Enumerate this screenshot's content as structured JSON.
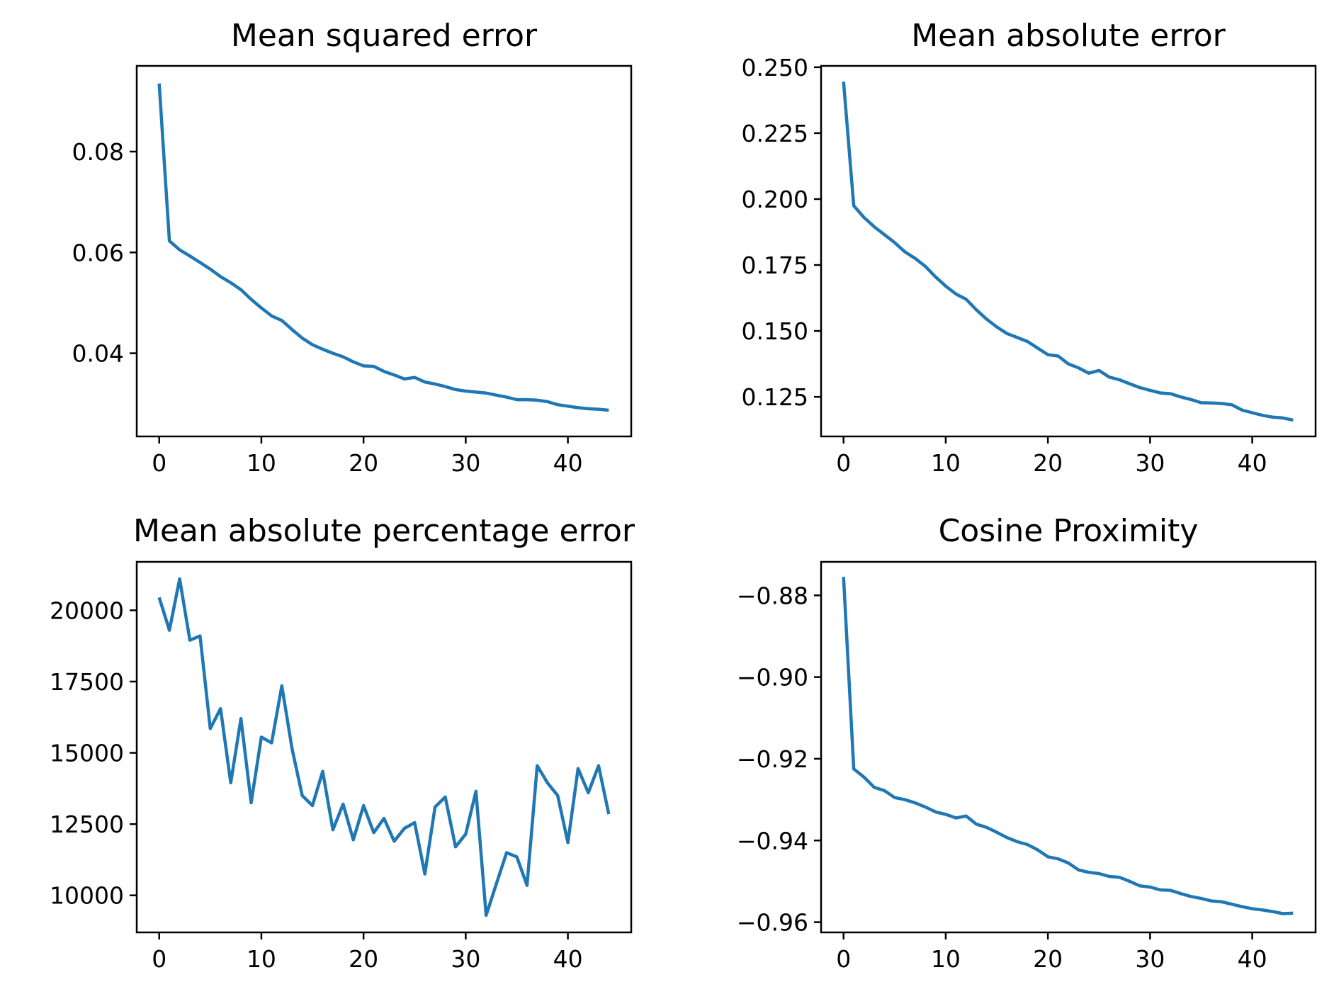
{
  "colors": {
    "series": "#1f77b4"
  },
  "chart_data": [
    {
      "type": "line",
      "title": "Mean squared error",
      "xlim": [
        -2.2,
        46.2
      ],
      "ylim": [
        0.0235,
        0.097
      ],
      "xticks": [
        0,
        10,
        20,
        30,
        40
      ],
      "xtick_labels": [
        "0",
        "10",
        "20",
        "30",
        "40"
      ],
      "yticks": [
        0.04,
        0.06,
        0.08
      ],
      "ytick_labels": [
        "0.04",
        "0.06",
        "0.08"
      ],
      "x": [
        0,
        1,
        2,
        3,
        4,
        5,
        6,
        7,
        8,
        9,
        10,
        11,
        12,
        13,
        14,
        15,
        16,
        17,
        18,
        19,
        20,
        21,
        22,
        23,
        24,
        25,
        26,
        27,
        28,
        29,
        30,
        31,
        32,
        33,
        34,
        35,
        36,
        37,
        38,
        39,
        40,
        41,
        42,
        43,
        44
      ],
      "series": [
        {
          "values": [
            0.0935,
            0.0623,
            0.0605,
            0.0593,
            0.058,
            0.0567,
            0.0552,
            0.054,
            0.0526,
            0.0507,
            0.049,
            0.0474,
            0.0465,
            0.0447,
            0.043,
            0.0417,
            0.0408,
            0.04,
            0.0393,
            0.0383,
            0.0375,
            0.0374,
            0.0364,
            0.0357,
            0.0349,
            0.0352,
            0.0343,
            0.0339,
            0.0334,
            0.0328,
            0.0325,
            0.0323,
            0.0321,
            0.0317,
            0.0313,
            0.0308,
            0.0308,
            0.0307,
            0.0304,
            0.0298,
            0.0295,
            0.0292,
            0.029,
            0.0289,
            0.0287
          ]
        }
      ]
    },
    {
      "type": "line",
      "title": "Mean absolute error",
      "xlim": [
        -2.2,
        46.2
      ],
      "ylim": [
        0.11,
        0.2505
      ],
      "xticks": [
        0,
        10,
        20,
        30,
        40
      ],
      "xtick_labels": [
        "0",
        "10",
        "20",
        "30",
        "40"
      ],
      "yticks": [
        0.125,
        0.15,
        0.175,
        0.2,
        0.225,
        0.25
      ],
      "ytick_labels": [
        "0.125",
        "0.150",
        "0.175",
        "0.200",
        "0.225",
        "0.250"
      ],
      "x": [
        0,
        1,
        2,
        3,
        4,
        5,
        6,
        7,
        8,
        9,
        10,
        11,
        12,
        13,
        14,
        15,
        16,
        17,
        18,
        19,
        20,
        21,
        22,
        23,
        24,
        25,
        26,
        27,
        28,
        29,
        30,
        31,
        32,
        33,
        34,
        35,
        36,
        37,
        38,
        39,
        40,
        41,
        42,
        43,
        44
      ],
      "series": [
        {
          "values": [
            0.2445,
            0.1975,
            0.193,
            0.1895,
            0.1865,
            0.1835,
            0.18,
            0.1775,
            0.1745,
            0.1705,
            0.167,
            0.164,
            0.162,
            0.158,
            0.1545,
            0.1515,
            0.149,
            0.1475,
            0.146,
            0.1435,
            0.141,
            0.1405,
            0.1375,
            0.136,
            0.134,
            0.135,
            0.1325,
            0.1315,
            0.13,
            0.1285,
            0.1275,
            0.1265,
            0.1262,
            0.125,
            0.124,
            0.1228,
            0.1227,
            0.1225,
            0.122,
            0.12,
            0.119,
            0.118,
            0.1173,
            0.117,
            0.1162
          ]
        }
      ]
    },
    {
      "type": "line",
      "title": "Mean absolute percentage error",
      "xlim": [
        -2.2,
        46.2
      ],
      "ylim": [
        8700,
        21700
      ],
      "xticks": [
        0,
        10,
        20,
        30,
        40
      ],
      "xtick_labels": [
        "0",
        "10",
        "20",
        "30",
        "40"
      ],
      "yticks": [
        10000,
        12500,
        15000,
        17500,
        20000
      ],
      "ytick_labels": [
        "10000",
        "12500",
        "15000",
        "17500",
        "20000"
      ],
      "x": [
        0,
        1,
        2,
        3,
        4,
        5,
        6,
        7,
        8,
        9,
        10,
        11,
        12,
        13,
        14,
        15,
        16,
        17,
        18,
        19,
        20,
        21,
        22,
        23,
        24,
        25,
        26,
        27,
        28,
        29,
        30,
        31,
        32,
        33,
        34,
        35,
        36,
        37,
        38,
        39,
        40,
        41,
        42,
        43,
        44
      ],
      "series": [
        {
          "values": [
            20450,
            19300,
            21100,
            18950,
            19100,
            15850,
            16550,
            13950,
            16200,
            13250,
            15550,
            15350,
            17350,
            15150,
            13500,
            13150,
            14350,
            12300,
            13200,
            11950,
            13150,
            12200,
            12700,
            11900,
            12350,
            12550,
            10750,
            13100,
            13450,
            11700,
            12150,
            13650,
            9300,
            10400,
            11500,
            11350,
            10350,
            14550,
            13950,
            13500,
            11850,
            14450,
            13600,
            14550,
            12850
          ]
        }
      ]
    },
    {
      "type": "line",
      "title": "Cosine Proximity",
      "xlim": [
        -2.2,
        46.2
      ],
      "ylim": [
        -0.9625,
        -0.8718
      ],
      "xticks": [
        0,
        10,
        20,
        30,
        40
      ],
      "xtick_labels": [
        "0",
        "10",
        "20",
        "30",
        "40"
      ],
      "yticks": [
        -0.96,
        -0.94,
        -0.92,
        -0.9,
        -0.88
      ],
      "ytick_labels": [
        "−0.96",
        "−0.94",
        "−0.92",
        "−0.90",
        "−0.88"
      ],
      "x": [
        0,
        1,
        2,
        3,
        4,
        5,
        6,
        7,
        8,
        9,
        10,
        11,
        12,
        13,
        14,
        15,
        16,
        17,
        18,
        19,
        20,
        21,
        22,
        23,
        24,
        25,
        26,
        27,
        28,
        29,
        30,
        31,
        32,
        33,
        34,
        35,
        36,
        37,
        38,
        39,
        40,
        41,
        42,
        43,
        44
      ],
      "series": [
        {
          "values": [
            -0.8755,
            -0.9225,
            -0.9245,
            -0.927,
            -0.9278,
            -0.9295,
            -0.93,
            -0.9308,
            -0.9318,
            -0.933,
            -0.9336,
            -0.9345,
            -0.934,
            -0.936,
            -0.9368,
            -0.938,
            -0.9393,
            -0.9403,
            -0.941,
            -0.9423,
            -0.944,
            -0.9445,
            -0.9455,
            -0.9472,
            -0.9478,
            -0.9481,
            -0.9488,
            -0.949,
            -0.95,
            -0.9511,
            -0.9514,
            -0.9521,
            -0.9522,
            -0.953,
            -0.9537,
            -0.9542,
            -0.9548,
            -0.955,
            -0.9556,
            -0.9562,
            -0.9567,
            -0.957,
            -0.9574,
            -0.9579,
            -0.9578
          ]
        }
      ]
    }
  ]
}
